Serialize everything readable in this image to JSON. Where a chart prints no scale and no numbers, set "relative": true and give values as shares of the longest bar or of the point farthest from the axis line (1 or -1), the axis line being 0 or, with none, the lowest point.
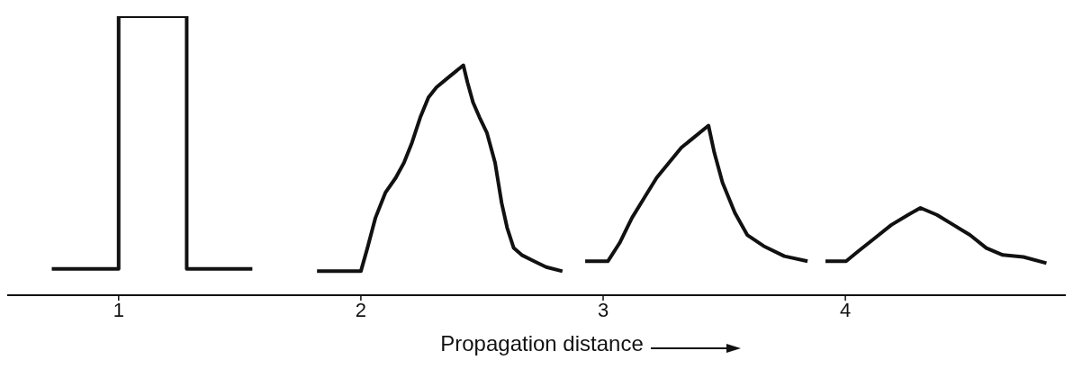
{
  "chart_data": {
    "type": "line",
    "relative": true,
    "xlabel": "Propagation distance",
    "xlim": [
      0.54,
      4.91
    ],
    "xticks": [
      1,
      2,
      3,
      4
    ],
    "marker": "none",
    "series": [
      {
        "color": "#111111",
        "x": [
          0.724,
          1,
          1,
          1.281,
          1.281,
          1.552
        ],
        "values": [
          0.094,
          0.094,
          1,
          1,
          0.094,
          0.094
        ]
      },
      {
        "color": "#111111",
        "x": [
          1.819,
          2,
          2.027,
          2.06,
          2.101,
          2.144,
          2.178,
          2.211,
          2.245,
          2.279,
          2.312,
          2.362,
          2.423,
          2.44,
          2.463,
          2.49,
          2.52,
          2.554,
          2.581,
          2.604,
          2.631,
          2.664,
          2.715,
          2.765,
          2.832
        ],
        "values": [
          0.086,
          0.086,
          0.169,
          0.277,
          0.367,
          0.421,
          0.475,
          0.547,
          0.637,
          0.709,
          0.745,
          0.781,
          0.824,
          0.763,
          0.691,
          0.637,
          0.583,
          0.475,
          0.331,
          0.241,
          0.169,
          0.144,
          0.122,
          0.101,
          0.086
        ]
      },
      {
        "color": "#111111",
        "x": [
          2.926,
          3.02,
          3.068,
          3.119,
          3.17,
          3.221,
          3.272,
          3.323,
          3.374,
          3.435,
          3.459,
          3.493,
          3.544,
          3.595,
          3.663,
          3.748,
          3.844
        ],
        "values": [
          0.122,
          0.122,
          0.187,
          0.277,
          0.349,
          0.421,
          0.475,
          0.529,
          0.565,
          0.608,
          0.511,
          0.403,
          0.295,
          0.216,
          0.176,
          0.14,
          0.122
        ]
      },
      {
        "color": "#111111",
        "x": [
          3.918,
          4.003,
          4.054,
          4.122,
          4.19,
          4.259,
          4.31,
          4.378,
          4.446,
          4.514,
          4.582,
          4.65,
          4.735,
          4.83
        ],
        "values": [
          0.122,
          0.122,
          0.158,
          0.205,
          0.252,
          0.288,
          0.313,
          0.288,
          0.252,
          0.216,
          0.169,
          0.144,
          0.137,
          0.115
        ]
      }
    ]
  }
}
